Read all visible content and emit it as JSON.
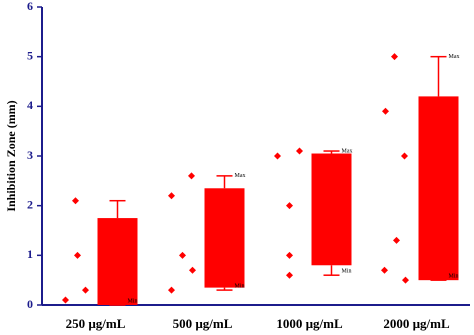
{
  "chart_data": {
    "type": "box",
    "y_label": "Inhibition Zone (mm)",
    "categories": [
      "250 µg/mL",
      "500 µg/mL",
      "1000 µg/mL",
      "2000 µg/mL"
    ],
    "boxes": [
      {
        "min": 0,
        "q1": 0,
        "q3": 1.75,
        "max": 2.1
      },
      {
        "min": 0.3,
        "q1": 0.35,
        "q3": 2.35,
        "max": 2.6
      },
      {
        "min": 0.6,
        "q1": 0.8,
        "q3": 3.05,
        "max": 3.1
      },
      {
        "min": 0.5,
        "q1": 0.5,
        "q3": 4.2,
        "max": 5.0
      }
    ],
    "points": [
      [
        0.1,
        2.1,
        1.0,
        0.3
      ],
      [
        2.2,
        0.3,
        1.0,
        2.6,
        0.7
      ],
      [
        3.0,
        2.0,
        1.0,
        0.6,
        3.1
      ],
      [
        3.9,
        5.0,
        1.3,
        3.0,
        0.7,
        0.5
      ]
    ],
    "max_labels": [
      null,
      "Max",
      "Max",
      "Max"
    ],
    "min_labels": [
      "Min",
      "Min",
      "Min",
      "Min"
    ],
    "color": "#ff0000",
    "axis_color": "#1c1c8c",
    "ylim": [
      0,
      6
    ],
    "yticks": [
      0,
      1,
      2,
      3,
      4,
      5,
      6
    ]
  }
}
